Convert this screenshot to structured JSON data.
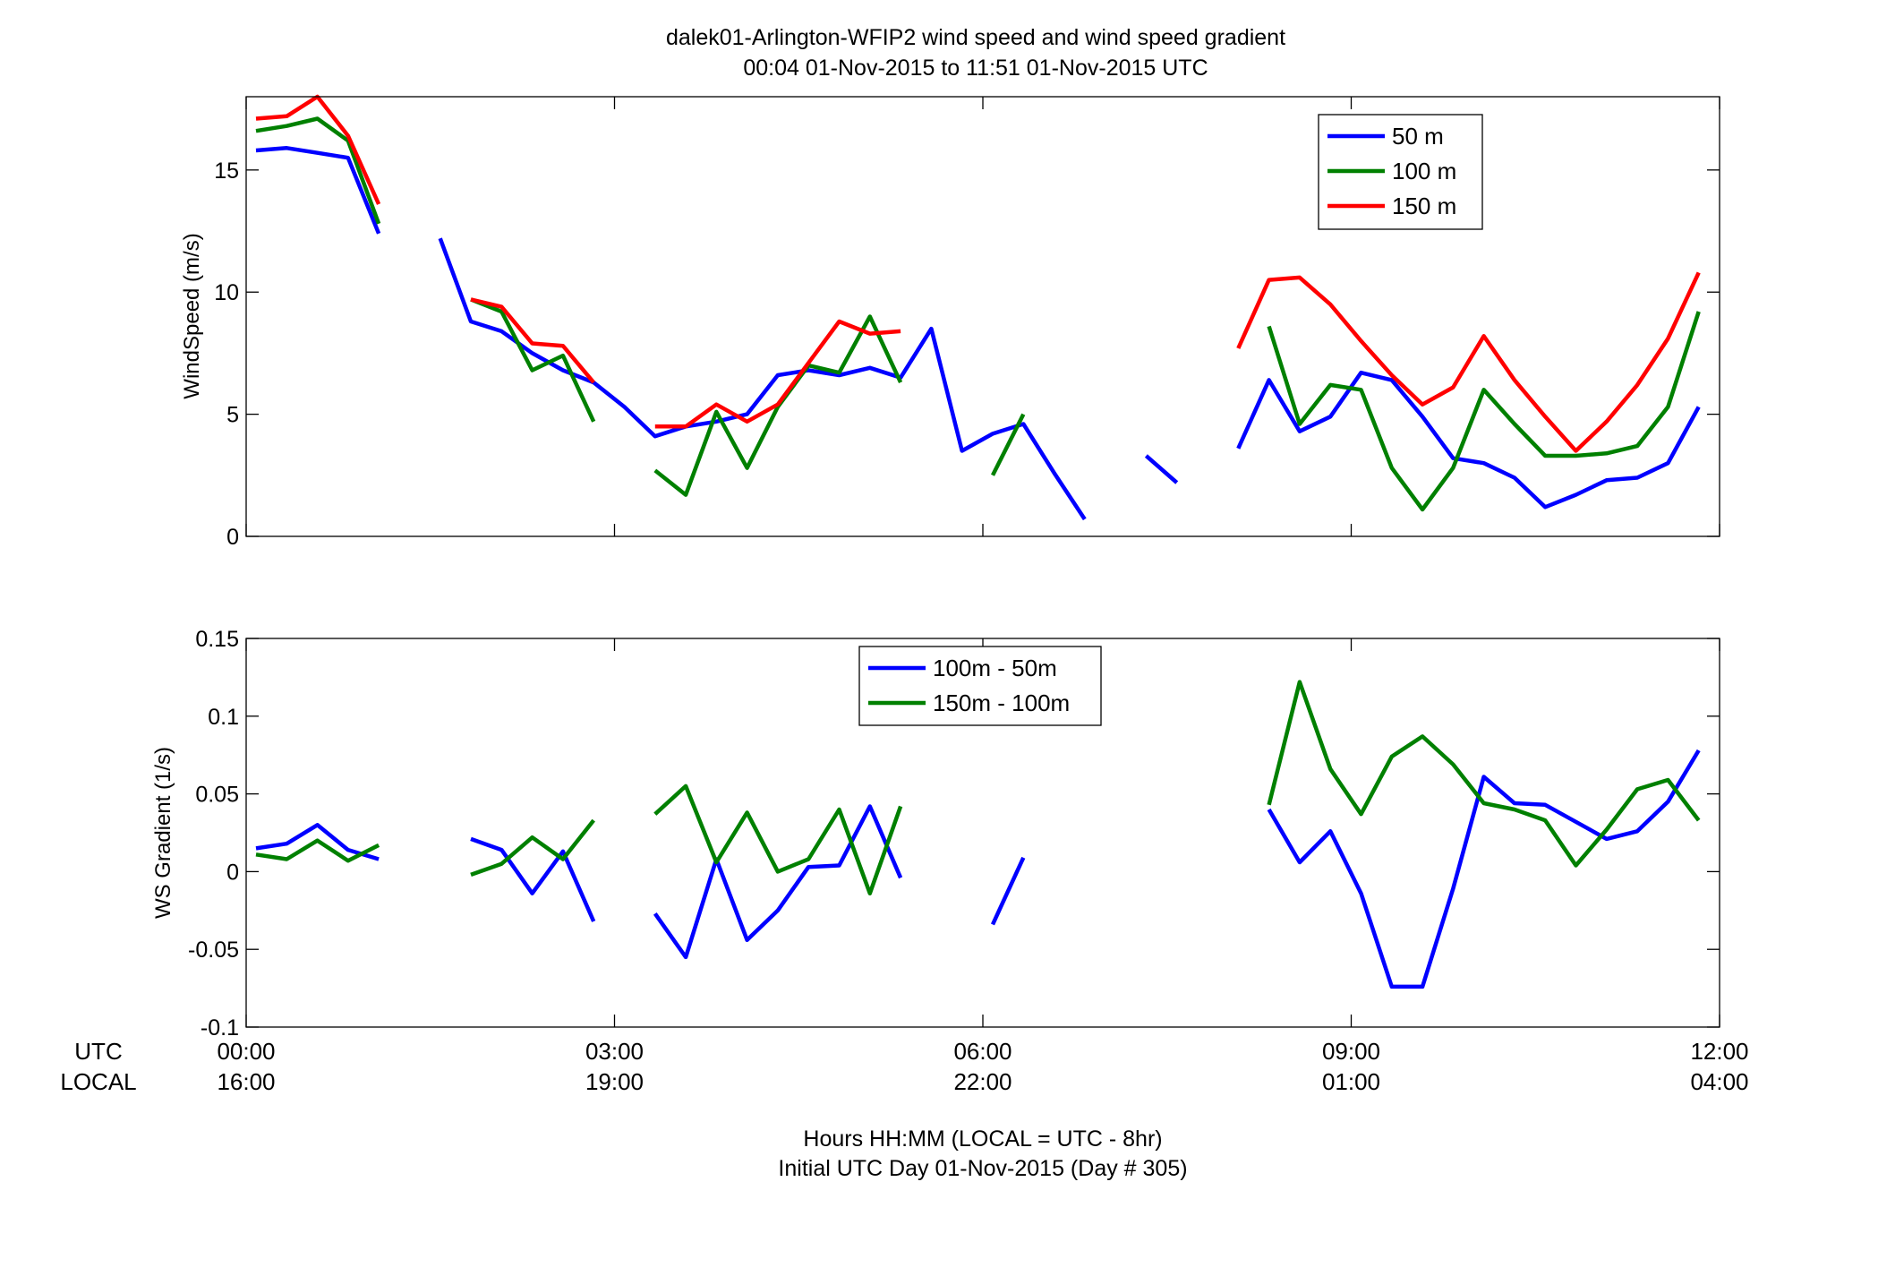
{
  "figure": {
    "title_line1": "dalek01-Arlington-WFIP2  wind speed and wind speed gradient",
    "title_line2": "00:04 01-Nov-2015 to 11:51 01-Nov-2015  UTC",
    "xlabel_line1": "Hours HH:MM  (LOCAL = UTC - 8hr)",
    "xlabel_line2": "Initial UTC Day 01-Nov-2015 (Day # 305)",
    "utc_row_label": "UTC",
    "local_row_label": "LOCAL",
    "x_tick_utc": [
      "00:00",
      "03:00",
      "06:00",
      "09:00",
      "12:00"
    ],
    "x_tick_local": [
      "16:00",
      "19:00",
      "22:00",
      "01:00",
      "04:00"
    ]
  },
  "chart_data": [
    {
      "type": "line",
      "title": "",
      "xlabel": "",
      "ylabel": "WindSpeed (m/s)",
      "xlim": [
        0,
        12
      ],
      "ylim": [
        0,
        18
      ],
      "x_ticks": [
        0,
        3,
        6,
        9,
        12
      ],
      "y_ticks": [
        0,
        5,
        10,
        15
      ],
      "y_tick_labels": [
        "0",
        "5",
        "10",
        "15"
      ],
      "grid": false,
      "legend_position": "top-right",
      "colors": [
        "#0000ff",
        "#008000",
        "#ff0000"
      ],
      "series": [
        {
          "name": "50 m",
          "color": "#0000ff",
          "x": [
            0.08,
            0.33,
            0.58,
            0.83,
            1.08,
            1.33,
            1.58,
            1.83,
            2.08,
            2.33,
            2.58,
            2.83,
            3.08,
            3.33,
            3.58,
            3.83,
            4.08,
            4.33,
            4.58,
            4.83,
            5.08,
            5.33,
            5.58,
            5.83,
            6.08,
            6.33,
            6.58,
            6.83,
            7.08,
            7.33,
            7.58,
            7.83,
            8.08,
            8.33,
            8.58,
            8.83,
            9.08,
            9.33,
            9.58,
            9.83,
            10.08,
            10.33,
            10.58,
            10.83,
            11.08,
            11.33,
            11.58,
            11.83
          ],
          "y": [
            15.8,
            15.9,
            15.7,
            15.5,
            12.4,
            null,
            12.2,
            8.8,
            8.4,
            7.5,
            6.8,
            6.3,
            5.3,
            4.1,
            4.5,
            4.7,
            5.0,
            6.6,
            6.8,
            6.6,
            6.9,
            6.5,
            8.5,
            3.5,
            4.2,
            4.6,
            2.6,
            0.7,
            null,
            3.3,
            2.2,
            null,
            3.6,
            6.4,
            4.3,
            4.9,
            6.7,
            6.4,
            4.9,
            3.2,
            3.0,
            2.4,
            1.2,
            1.7,
            2.3,
            2.4,
            3.0,
            5.3
          ]
        },
        {
          "name": "100 m",
          "color": "#008000",
          "x": [
            0.08,
            0.33,
            0.58,
            0.83,
            1.08,
            1.33,
            1.58,
            1.83,
            2.08,
            2.33,
            2.58,
            2.83,
            3.08,
            3.33,
            3.58,
            3.83,
            4.08,
            4.33,
            4.58,
            4.83,
            5.08,
            5.33,
            5.58,
            5.83,
            6.08,
            6.33,
            6.58,
            6.83,
            7.08,
            7.33,
            7.58,
            7.83,
            8.08,
            8.33,
            8.58,
            8.83,
            9.08,
            9.33,
            9.58,
            9.83,
            10.08,
            10.33,
            10.58,
            10.83,
            11.08,
            11.33,
            11.58,
            11.83
          ],
          "y": [
            16.6,
            16.8,
            17.1,
            16.2,
            12.8,
            null,
            null,
            9.7,
            9.2,
            6.8,
            7.4,
            4.7,
            null,
            2.7,
            1.7,
            5.1,
            2.8,
            5.3,
            7.0,
            6.7,
            9.0,
            6.3,
            null,
            null,
            2.5,
            5.0,
            null,
            null,
            null,
            null,
            null,
            null,
            null,
            8.6,
            4.6,
            6.2,
            6.0,
            2.8,
            1.1,
            2.8,
            6.0,
            4.6,
            3.3,
            3.3,
            3.4,
            3.7,
            5.3,
            9.2
          ]
        },
        {
          "name": "150 m",
          "color": "#ff0000",
          "x": [
            0.08,
            0.33,
            0.58,
            0.83,
            1.08,
            1.33,
            1.58,
            1.83,
            2.08,
            2.33,
            2.58,
            2.83,
            3.08,
            3.33,
            3.58,
            3.83,
            4.08,
            4.33,
            4.58,
            4.83,
            5.08,
            5.33,
            5.58,
            5.83,
            6.08,
            6.33,
            6.58,
            6.83,
            7.08,
            7.33,
            7.58,
            7.83,
            8.08,
            8.33,
            8.58,
            8.83,
            9.08,
            9.33,
            9.58,
            9.83,
            10.08,
            10.33,
            10.58,
            10.83,
            11.08,
            11.33,
            11.58,
            11.83
          ],
          "y": [
            17.1,
            17.2,
            18.2,
            16.4,
            13.6,
            null,
            null,
            9.7,
            9.4,
            7.9,
            7.8,
            6.3,
            null,
            4.5,
            4.5,
            5.4,
            4.7,
            5.4,
            7.1,
            8.8,
            8.3,
            8.4,
            null,
            null,
            null,
            null,
            null,
            null,
            null,
            null,
            null,
            null,
            7.7,
            10.5,
            10.6,
            9.5,
            8.0,
            6.6,
            5.4,
            6.1,
            8.2,
            6.4,
            4.9,
            3.5,
            4.7,
            6.2,
            8.1,
            10.8
          ]
        }
      ]
    },
    {
      "type": "line",
      "title": "",
      "xlabel": "",
      "ylabel": "WS Gradient (1/s)",
      "xlim": [
        0,
        12
      ],
      "ylim": [
        -0.1,
        0.15
      ],
      "x_ticks": [
        0,
        3,
        6,
        9,
        12
      ],
      "y_ticks": [
        -0.1,
        -0.05,
        0,
        0.05,
        0.1,
        0.15
      ],
      "y_tick_labels": [
        "-0.1",
        "-0.05",
        "0",
        "0.05",
        "0.1",
        "0.15"
      ],
      "grid": false,
      "legend_position": "top-center",
      "colors": [
        "#0000ff",
        "#008000"
      ],
      "series": [
        {
          "name": "100m - 50m",
          "color": "#0000ff",
          "x": [
            0.08,
            0.33,
            0.58,
            0.83,
            1.08,
            1.33,
            1.58,
            1.83,
            2.08,
            2.33,
            2.58,
            2.83,
            3.08,
            3.33,
            3.58,
            3.83,
            4.08,
            4.33,
            4.58,
            4.83,
            5.08,
            5.33,
            5.58,
            5.83,
            6.08,
            6.33,
            6.58,
            6.83,
            7.08,
            7.33,
            7.58,
            7.83,
            8.08,
            8.33,
            8.58,
            8.83,
            9.08,
            9.33,
            9.58,
            9.83,
            10.08,
            10.33,
            10.58,
            10.83,
            11.08,
            11.33,
            11.58,
            11.83
          ],
          "y": [
            0.015,
            0.018,
            0.03,
            0.014,
            0.008,
            null,
            null,
            0.021,
            0.014,
            -0.014,
            0.013,
            -0.032,
            null,
            -0.027,
            -0.055,
            0.008,
            -0.044,
            -0.025,
            0.003,
            0.004,
            0.042,
            -0.004,
            null,
            null,
            -0.034,
            0.009,
            null,
            null,
            null,
            null,
            null,
            null,
            null,
            0.04,
            0.006,
            0.026,
            -0.014,
            -0.074,
            -0.074,
            -0.011,
            0.061,
            0.044,
            0.043,
            0.032,
            0.021,
            0.026,
            0.045,
            0.078
          ]
        },
        {
          "name": "150m - 100m",
          "color": "#008000",
          "x": [
            0.08,
            0.33,
            0.58,
            0.83,
            1.08,
            1.33,
            1.58,
            1.83,
            2.08,
            2.33,
            2.58,
            2.83,
            3.08,
            3.33,
            3.58,
            3.83,
            4.08,
            4.33,
            4.58,
            4.83,
            5.08,
            5.33,
            5.58,
            5.83,
            6.08,
            6.33,
            6.58,
            6.83,
            7.08,
            7.33,
            7.58,
            7.83,
            8.08,
            8.33,
            8.58,
            8.83,
            9.08,
            9.33,
            9.58,
            9.83,
            10.08,
            10.33,
            10.58,
            10.83,
            11.08,
            11.33,
            11.58,
            11.83
          ],
          "y": [
            0.011,
            0.008,
            0.02,
            0.007,
            0.017,
            null,
            null,
            -0.002,
            0.005,
            0.022,
            0.008,
            0.033,
            null,
            0.037,
            0.055,
            0.006,
            0.038,
            0.0,
            0.008,
            0.04,
            -0.014,
            0.042,
            null,
            null,
            null,
            null,
            null,
            null,
            null,
            null,
            null,
            null,
            null,
            0.043,
            0.122,
            0.066,
            0.037,
            0.074,
            0.087,
            0.069,
            0.044,
            0.04,
            0.033,
            0.004,
            0.027,
            0.053,
            0.059,
            0.033
          ]
        }
      ]
    }
  ]
}
